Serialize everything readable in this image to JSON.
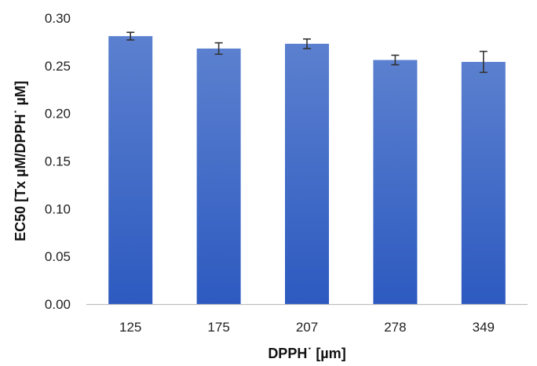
{
  "chart_data": {
    "type": "bar",
    "categories": [
      "125",
      "175",
      "207",
      "278",
      "349"
    ],
    "values": [
      0.281,
      0.268,
      0.273,
      0.256,
      0.254
    ],
    "errors": [
      0.004,
      0.006,
      0.005,
      0.005,
      0.011
    ],
    "xlabel": "DPPH˙ [µm]",
    "ylabel": "EC50 [Tx µM/DPPH˙ µM]",
    "ylim": [
      0,
      0.3
    ],
    "yticks": [
      "0.00",
      "0.05",
      "0.10",
      "0.15",
      "0.20",
      "0.25",
      "0.30"
    ],
    "grid": false,
    "legend": "none",
    "colors": {
      "bar_top": "#5b80cf",
      "bar_bottom": "#2d5ac0",
      "error_bar": "#333333",
      "axis": "#bfbfbf"
    }
  }
}
